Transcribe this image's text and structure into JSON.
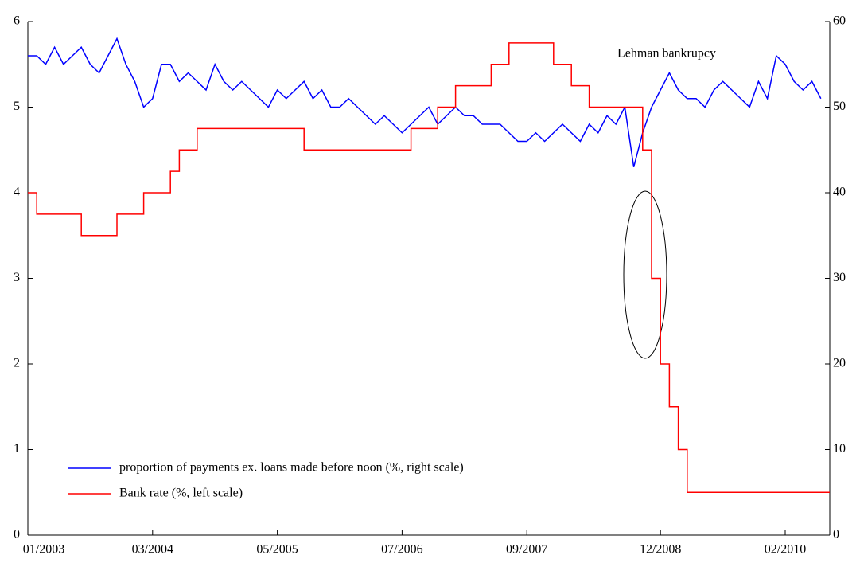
{
  "chart_data": {
    "type": "line",
    "annotation": "Lehman bankrupcy",
    "x": [
      "2003-01",
      "2003-02",
      "2003-03",
      "2003-04",
      "2003-05",
      "2003-06",
      "2003-07",
      "2003-08",
      "2003-09",
      "2003-10",
      "2003-11",
      "2003-12",
      "2004-01",
      "2004-02",
      "2004-03",
      "2004-04",
      "2004-05",
      "2004-06",
      "2004-07",
      "2004-08",
      "2004-09",
      "2004-10",
      "2004-11",
      "2004-12",
      "2005-01",
      "2005-02",
      "2005-03",
      "2005-04",
      "2005-05",
      "2005-06",
      "2005-07",
      "2005-08",
      "2005-09",
      "2005-10",
      "2005-11",
      "2005-12",
      "2006-01",
      "2006-02",
      "2006-03",
      "2006-04",
      "2006-05",
      "2006-06",
      "2006-07",
      "2006-08",
      "2006-09",
      "2006-10",
      "2006-11",
      "2006-12",
      "2007-01",
      "2007-02",
      "2007-03",
      "2007-04",
      "2007-05",
      "2007-06",
      "2007-07",
      "2007-08",
      "2007-09",
      "2007-10",
      "2007-11",
      "2007-12",
      "2008-01",
      "2008-02",
      "2008-03",
      "2008-04",
      "2008-05",
      "2008-06",
      "2008-07",
      "2008-08",
      "2008-09",
      "2008-10",
      "2008-11",
      "2008-12",
      "2009-01",
      "2009-02",
      "2009-03",
      "2009-04",
      "2009-05",
      "2009-06",
      "2009-07",
      "2009-08",
      "2009-09",
      "2009-10",
      "2009-11",
      "2009-12",
      "2010-01",
      "2010-02",
      "2010-03",
      "2010-04",
      "2010-05",
      "2010-06"
    ],
    "xlim": [
      "2003-01",
      "2010-06"
    ],
    "xticks": [
      {
        "value": "2003-01",
        "label": "01/2003"
      },
      {
        "value": "2004-03",
        "label": "03/2004"
      },
      {
        "value": "2005-05",
        "label": "05/2005"
      },
      {
        "value": "2006-07",
        "label": "07/2006"
      },
      {
        "value": "2007-09",
        "label": "09/2007"
      },
      {
        "value": "2008-12",
        "label": "12/2008"
      },
      {
        "value": "2010-02",
        "label": "02/2010"
      }
    ],
    "ylim": [
      0,
      6
    ],
    "yticks": [
      0,
      1,
      2,
      3,
      4,
      5,
      6
    ],
    "y2lim": [
      0,
      60
    ],
    "y2ticks": [
      0,
      10,
      20,
      30,
      40,
      50,
      60
    ],
    "series": [
      {
        "name": "proportion of payments ex. loans made before noon (%, right scale)",
        "color": "#0000ff",
        "axis": "y2",
        "values": [
          56,
          56,
          55,
          57,
          55,
          56,
          57,
          55,
          54,
          56,
          58,
          55,
          53,
          50,
          51,
          55,
          55,
          53,
          54,
          53,
          52,
          55,
          53,
          52,
          53,
          52,
          51,
          50,
          52,
          51,
          52,
          53,
          51,
          52,
          50,
          50,
          51,
          50,
          49,
          48,
          49,
          48,
          47,
          48,
          49,
          50,
          48,
          49,
          50,
          49,
          49,
          48,
          48,
          48,
          47,
          46,
          46,
          47,
          46,
          47,
          48,
          47,
          46,
          48,
          47,
          49,
          48,
          50,
          43,
          47,
          50,
          52,
          54,
          52,
          51,
          51,
          50,
          52,
          53,
          52,
          51,
          50,
          53,
          51,
          56,
          55,
          53,
          52,
          53,
          51
        ]
      },
      {
        "name": "Bank rate (%, left scale)",
        "color": "#ff0000",
        "step": true,
        "values": [
          4,
          3.75,
          3.75,
          3.75,
          3.75,
          3.75,
          3.5,
          3.5,
          3.5,
          3.5,
          3.75,
          3.75,
          3.75,
          4,
          4,
          4,
          4.25,
          4.5,
          4.5,
          4.75,
          4.75,
          4.75,
          4.75,
          4.75,
          4.75,
          4.75,
          4.75,
          4.75,
          4.75,
          4.75,
          4.75,
          4.5,
          4.5,
          4.5,
          4.5,
          4.5,
          4.5,
          4.5,
          4.5,
          4.5,
          4.5,
          4.5,
          4.5,
          4.75,
          4.75,
          4.75,
          5,
          5,
          5.25,
          5.25,
          5.25,
          5.25,
          5.5,
          5.5,
          5.75,
          5.75,
          5.75,
          5.75,
          5.75,
          5.5,
          5.5,
          5.25,
          5.25,
          5,
          5,
          5,
          5,
          5,
          5,
          4.5,
          3,
          2,
          1.5,
          1,
          0.5,
          0.5,
          0.5,
          0.5,
          0.5,
          0.5,
          0.5,
          0.5,
          0.5,
          0.5,
          0.5,
          0.5,
          0.5,
          0.5,
          0.5,
          0.5
        ]
      }
    ]
  }
}
